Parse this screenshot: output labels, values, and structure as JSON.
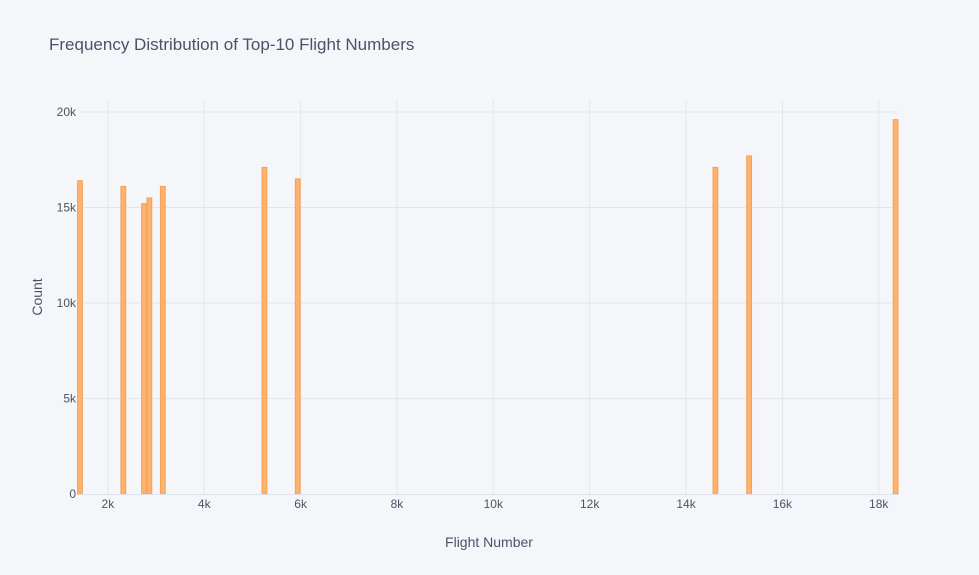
{
  "chart_data": {
    "type": "bar",
    "title": "Frequency Distribution of Top-10 Flight Numbers",
    "xlabel": "Flight Number",
    "ylabel": "Count",
    "xlim": [
      1400,
      18400
    ],
    "ylim": [
      0,
      20000
    ],
    "x_ticks": [
      {
        "value": 2000,
        "label": "2k"
      },
      {
        "value": 4000,
        "label": "4k"
      },
      {
        "value": 6000,
        "label": "6k"
      },
      {
        "value": 8000,
        "label": "8k"
      },
      {
        "value": 10000,
        "label": "10k"
      },
      {
        "value": 12000,
        "label": "12k"
      },
      {
        "value": 14000,
        "label": "14k"
      },
      {
        "value": 16000,
        "label": "16k"
      },
      {
        "value": 18000,
        "label": "18k"
      }
    ],
    "y_ticks": [
      {
        "value": 0,
        "label": "0"
      },
      {
        "value": 5000,
        "label": "5k"
      },
      {
        "value": 10000,
        "label": "10k"
      },
      {
        "value": 15000,
        "label": "15k"
      },
      {
        "value": 20000,
        "label": "20k"
      }
    ],
    "bar_width": 100,
    "x": [
      1420,
      2320,
      2750,
      2860,
      3140,
      5250,
      5940,
      14610,
      15310,
      18350
    ],
    "values": [
      16400,
      16100,
      15200,
      15500,
      16100,
      17100,
      16500,
      17100,
      17700,
      19600
    ],
    "grid": true,
    "colors": {
      "bar_fill": "#ffb26e",
      "bar_stroke": "#f3a255",
      "background": "#f5f6fa"
    }
  }
}
